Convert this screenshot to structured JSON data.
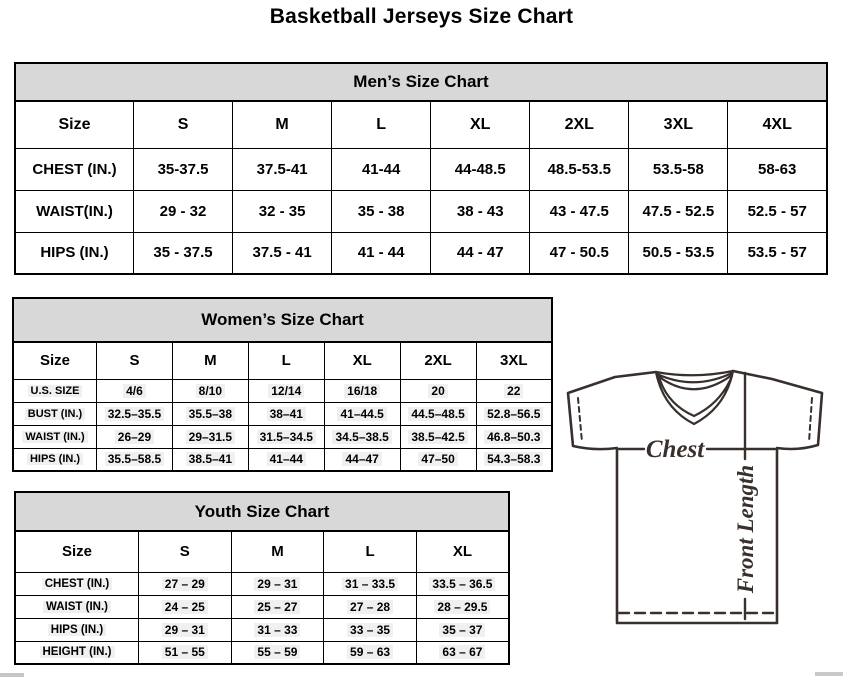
{
  "page": {
    "title": "Basketball Jerseys Size Chart"
  },
  "tables": {
    "men": {
      "title": "Men’s Size Chart",
      "columns": [
        "Size",
        "S",
        "M",
        "L",
        "XL",
        "2XL",
        "3XL",
        "4XL"
      ],
      "rows": [
        {
          "label": "CHEST (IN.)",
          "values": [
            "35-37.5",
            "37.5-41",
            "41-44",
            "44-48.5",
            "48.5-53.5",
            "53.5-58",
            "58-63"
          ]
        },
        {
          "label": "WAIST(IN.)",
          "values": [
            "29 - 32",
            "32 - 35",
            "35 - 38",
            "38 - 43",
            "43 - 47.5",
            "47.5 - 52.5",
            "52.5 - 57"
          ]
        },
        {
          "label": "HIPS (IN.)",
          "values": [
            "35 - 37.5",
            "37.5 - 41",
            "41 - 44",
            "44 - 47",
            "47 - 50.5",
            "50.5 - 53.5",
            "53.5 - 57"
          ]
        }
      ]
    },
    "women": {
      "title": "Women’s Size Chart",
      "columns": [
        "Size",
        "S",
        "M",
        "L",
        "XL",
        "2XL",
        "3XL"
      ],
      "rows": [
        {
          "label": "U.S. SIZE",
          "values": [
            "4/6",
            "8/10",
            "12/14",
            "16/18",
            "20",
            "22"
          ]
        },
        {
          "label": "BUST (IN.)",
          "values": [
            "32.5–35.5",
            "35.5–38",
            "38–41",
            "41–44.5",
            "44.5–48.5",
            "52.8–56.5"
          ]
        },
        {
          "label": "WAIST (IN.)",
          "values": [
            "26–29",
            "29–31.5",
            "31.5–34.5",
            "34.5–38.5",
            "38.5–42.5",
            "46.8–50.3"
          ]
        },
        {
          "label": "HIPS (IN.)",
          "values": [
            "35.5–58.5",
            "38.5–41",
            "41–44",
            "44–47",
            "47–50",
            "54.3–58.3"
          ]
        }
      ]
    },
    "youth": {
      "title": "Youth Size Chart",
      "columns": [
        "Size",
        "S",
        "M",
        "L",
        "XL"
      ],
      "rows": [
        {
          "label": "CHEST (IN.)",
          "values": [
            "27 – 29",
            "29 – 31",
            "31 – 33.5",
            "33.5 – 36.5"
          ]
        },
        {
          "label": "WAIST (IN.)",
          "values": [
            "24 – 25",
            "25 – 27",
            "27 – 28",
            "28 – 29.5"
          ]
        },
        {
          "label": "HIPS (IN.)",
          "values": [
            "29 – 31",
            "31 – 33",
            "33 – 35",
            "35 – 37"
          ]
        },
        {
          "label": "HEIGHT (IN.)",
          "values": [
            "51 – 55",
            "55 – 59",
            "59 – 63",
            "63 – 67"
          ]
        }
      ]
    }
  },
  "diagram": {
    "chest_label": "Chest",
    "front_length_label": "Front Length"
  },
  "colors": {
    "table_header_bg": "#d8d8d8",
    "table_border": "#000000",
    "jersey_stroke": "#38302c",
    "highlight_bg": "#f0f0f0"
  }
}
